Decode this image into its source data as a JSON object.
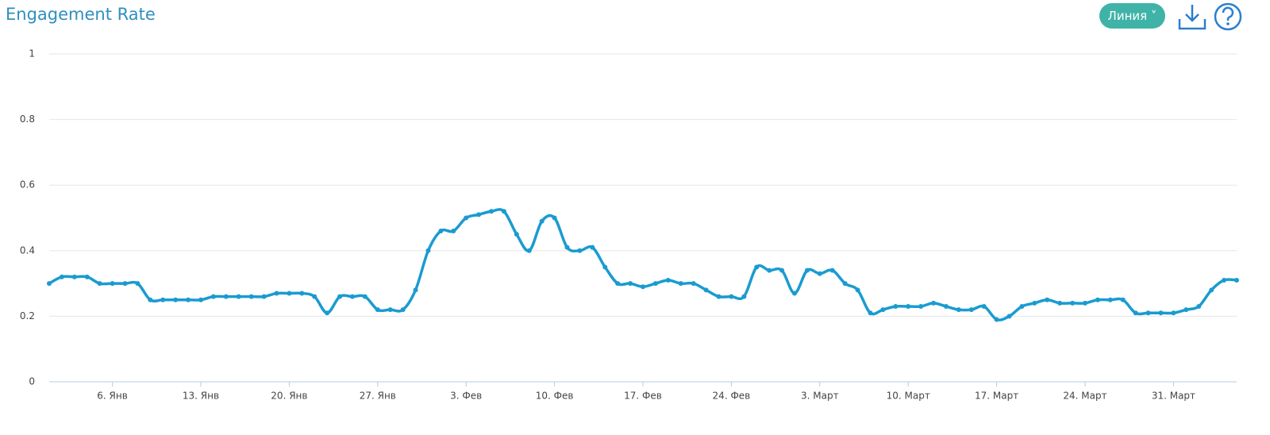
{
  "header": {
    "title": "Engagement Rate",
    "button": "Линия"
  },
  "chart_data": {
    "type": "line",
    "categories": [
      null,
      null,
      null,
      null,
      null,
      "6. Янв",
      null,
      null,
      null,
      null,
      null,
      null,
      "13. Янв",
      null,
      null,
      null,
      null,
      null,
      null,
      "20. Янв",
      null,
      null,
      null,
      null,
      null,
      null,
      "27. Янв",
      null,
      null,
      null,
      null,
      null,
      null,
      "3. Фев",
      null,
      null,
      null,
      null,
      null,
      null,
      "10. Фев",
      null,
      null,
      null,
      null,
      null,
      null,
      "17. Фев",
      null,
      null,
      null,
      null,
      null,
      null,
      "24. Фев",
      null,
      null,
      null,
      null,
      null,
      null,
      "3. Март",
      null,
      null,
      null,
      null,
      null,
      null,
      "10. Март",
      null,
      null,
      null,
      null,
      null,
      null,
      "17. Март",
      null,
      null,
      null,
      null,
      null,
      null,
      "24. Март",
      null,
      null,
      null,
      null,
      null,
      null,
      "31. Март",
      null,
      null,
      null,
      null,
      null
    ],
    "series": [
      {
        "color": "#1a9bd0",
        "values": [
          0.3,
          0.32,
          0.32,
          0.32,
          0.3,
          0.3,
          0.3,
          0.3,
          0.25,
          0.25,
          0.25,
          0.25,
          0.25,
          0.26,
          0.26,
          0.26,
          0.26,
          0.26,
          0.27,
          0.27,
          0.27,
          0.26,
          0.21,
          0.26,
          0.26,
          0.26,
          0.22,
          0.22,
          0.22,
          0.28,
          0.4,
          0.46,
          0.46,
          0.5,
          0.51,
          0.52,
          0.52,
          0.45,
          0.4,
          0.49,
          0.5,
          0.41,
          0.4,
          0.41,
          0.35,
          0.3,
          0.3,
          0.29,
          0.3,
          0.31,
          0.3,
          0.3,
          0.28,
          0.26,
          0.26,
          0.26,
          0.35,
          0.34,
          0.34,
          0.27,
          0.34,
          0.33,
          0.34,
          0.3,
          0.28,
          0.21,
          0.22,
          0.23,
          0.23,
          0.23,
          0.24,
          0.23,
          0.22,
          0.22,
          0.23,
          0.19,
          0.2,
          0.23,
          0.24,
          0.25,
          0.24,
          0.24,
          0.24,
          0.25,
          0.25,
          0.25,
          0.21,
          0.21,
          0.21,
          0.21,
          0.22,
          0.23,
          0.28,
          0.31,
          0.31
        ]
      }
    ],
    "ylim": [
      0,
      1
    ],
    "yticks": [
      0,
      0.2,
      0.4,
      0.6,
      0.8,
      1
    ],
    "grid": true
  }
}
